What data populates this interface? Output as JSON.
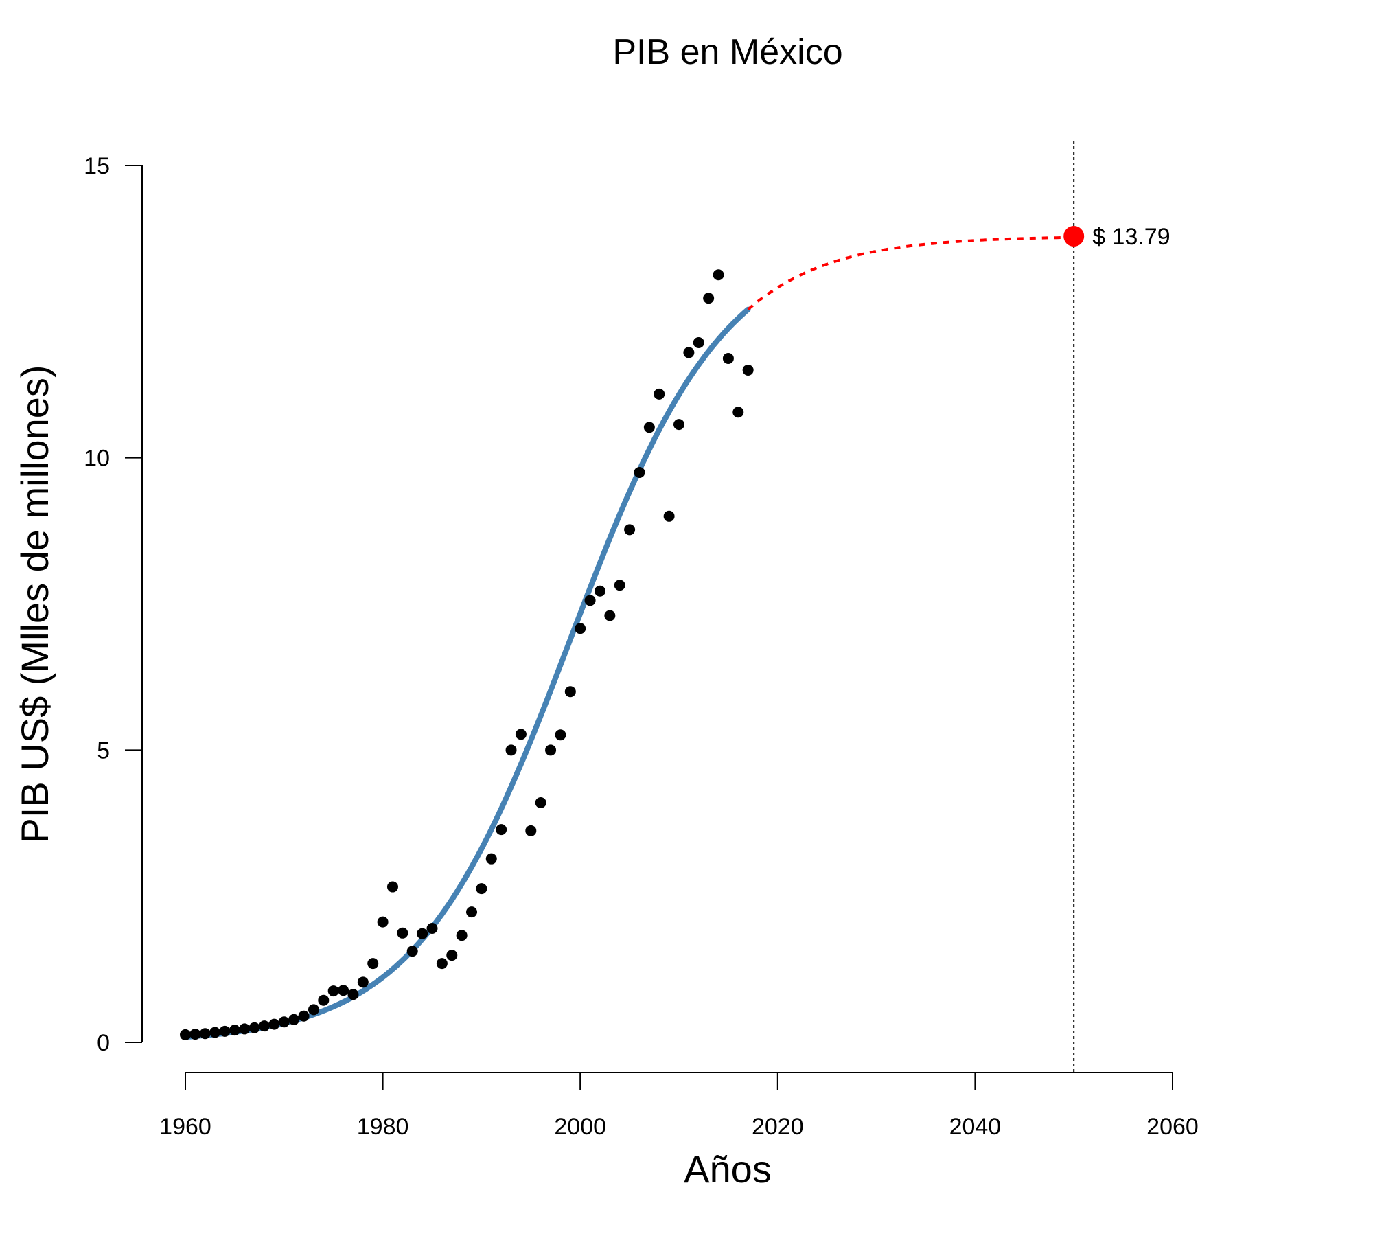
{
  "chart_data": {
    "type": "scatter",
    "title": "PIB en México",
    "xlabel": "Años",
    "ylabel": "PIB US$ (Mlles de millones)",
    "xlim": [
      1960,
      2060
    ],
    "ylim": [
      0,
      15
    ],
    "x_ticks": [
      "1960",
      "1980",
      "2000",
      "2020",
      "2040",
      "2060"
    ],
    "y_ticks": [
      "0",
      "5",
      "10",
      "15"
    ],
    "grid": false,
    "colors": {
      "points": "#000000",
      "fit_line": "#4682b4",
      "projection": "#ff0000",
      "reference_line": "#000000"
    },
    "series": [
      {
        "type": "scatter",
        "x": [
          1960,
          1961,
          1962,
          1963,
          1964,
          1965,
          1966,
          1967,
          1968,
          1969,
          1970,
          1971,
          1972,
          1973,
          1974,
          1975,
          1976,
          1977,
          1978,
          1979,
          1980,
          1981,
          1982,
          1983,
          1984,
          1985,
          1986,
          1987,
          1988,
          1989,
          1990,
          1991,
          1992,
          1993,
          1994,
          1995,
          1996,
          1997,
          1998,
          1999,
          2000,
          2001,
          2002,
          2003,
          2004,
          2005,
          2006,
          2007,
          2008,
          2009,
          2010,
          2011,
          2012,
          2013,
          2014,
          2015,
          2016,
          2017
        ],
        "y": [
          0.13,
          0.14,
          0.15,
          0.17,
          0.19,
          0.21,
          0.23,
          0.25,
          0.28,
          0.31,
          0.35,
          0.39,
          0.45,
          0.56,
          0.72,
          0.88,
          0.89,
          0.82,
          1.03,
          1.35,
          2.06,
          2.66,
          1.87,
          1.56,
          1.86,
          1.95,
          1.35,
          1.49,
          1.83,
          2.23,
          2.63,
          3.14,
          3.64,
          5.0,
          5.27,
          3.62,
          4.1,
          5.0,
          5.26,
          6.0,
          7.08,
          7.56,
          7.72,
          7.3,
          7.82,
          8.77,
          9.75,
          10.52,
          11.09,
          9.0,
          10.57,
          11.8,
          11.97,
          12.73,
          13.13,
          11.7,
          10.78,
          11.5
        ]
      }
    ],
    "fit": {
      "type": "logistic",
      "x_range": [
        1960,
        2017
      ],
      "asymptote": 13.79,
      "midpoint": 1999.0,
      "rate": 0.128
    },
    "projection": {
      "x_range": [
        2017,
        2050
      ],
      "end_x": 2050,
      "end_y": 13.79
    },
    "reference_line_x": 2050,
    "annotation": "$ 13.79"
  }
}
